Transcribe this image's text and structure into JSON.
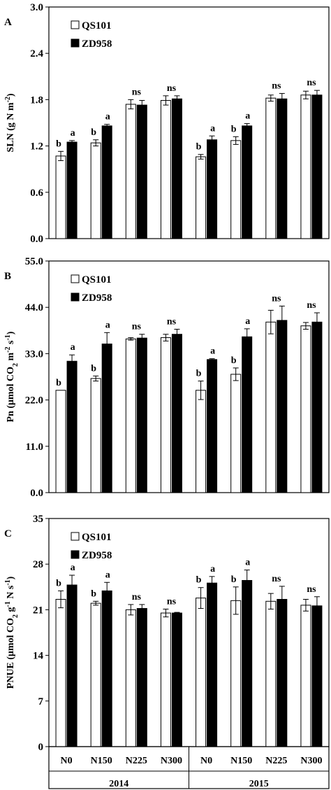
{
  "chart_data": [
    {
      "type": "bar",
      "panel": "A",
      "ylabel_parts": [
        "SLN (g N m",
        "-2",
        ")"
      ],
      "ylim": [
        0,
        3.0
      ],
      "yticks": [
        "0.0",
        "0.6",
        "1.2",
        "1.8",
        "2.4",
        "3.0"
      ],
      "categories": [
        "N0",
        "N150",
        "N225",
        "N300",
        "N0",
        "N150",
        "N225",
        "N300"
      ],
      "legend": {
        "placement": "top-left"
      },
      "series": [
        {
          "name": "QS101",
          "fill": "#ffffff",
          "values": [
            1.07,
            1.24,
            1.74,
            1.79,
            1.06,
            1.27,
            1.82,
            1.86
          ],
          "errors": [
            0.06,
            0.04,
            0.06,
            0.06,
            0.03,
            0.05,
            0.04,
            0.05
          ]
        },
        {
          "name": "ZD958",
          "fill": "#000000",
          "values": [
            1.25,
            1.46,
            1.73,
            1.81,
            1.28,
            1.46,
            1.81,
            1.86
          ],
          "errors": [
            0.02,
            0.02,
            0.06,
            0.04,
            0.05,
            0.03,
            0.07,
            0.06
          ]
        }
      ],
      "labels": [
        [
          "b",
          "b",
          "ns",
          "ns",
          "b",
          "b",
          "ns",
          "ns"
        ],
        [
          "a",
          "a",
          "",
          "",
          "a",
          "a",
          "",
          ""
        ]
      ]
    },
    {
      "type": "bar",
      "panel": "B",
      "ylabel_parts": [
        "Pn (μmol CO",
        "2",
        "  m",
        "-2",
        " s",
        "-1",
        ")"
      ],
      "ylim": [
        0,
        55.0
      ],
      "yticks": [
        "0.0",
        "11.0",
        "22.0",
        "33.0",
        "44.0",
        "55.0"
      ],
      "categories": [
        "N0",
        "N150",
        "N225",
        "N300",
        "N0",
        "N150",
        "N225",
        "N300"
      ],
      "legend": {
        "placement": "top-left"
      },
      "series": [
        {
          "name": "QS101",
          "fill": "#ffffff",
          "values": [
            24.3,
            27.1,
            36.5,
            36.8,
            24.3,
            28.1,
            40.5,
            39.6
          ],
          "errors": [
            0.0,
            0.6,
            0.3,
            0.8,
            2.2,
            1.5,
            2.8,
            0.8
          ]
        },
        {
          "name": "ZD958",
          "fill": "#000000",
          "values": [
            31.2,
            35.3,
            36.7,
            37.6,
            31.6,
            37.0,
            40.9,
            40.5
          ],
          "errors": [
            1.5,
            2.7,
            0.9,
            1.2,
            0.2,
            1.9,
            3.4,
            2.2
          ]
        }
      ],
      "labels": [
        [
          "b",
          "b",
          "ns",
          "ns",
          "b",
          "b",
          "ns",
          "ns"
        ],
        [
          "a",
          "a",
          "",
          "",
          "a",
          "a",
          "",
          ""
        ]
      ]
    },
    {
      "type": "bar",
      "panel": "C",
      "ylabel_parts": [
        "PNUE (μmol CO",
        "2",
        " g",
        "-1",
        " N s",
        "-1",
        ")"
      ],
      "ylim": [
        0,
        35
      ],
      "yticks": [
        "0",
        "7",
        "14",
        "21",
        "28",
        "35"
      ],
      "categories": [
        "N0",
        "N150",
        "N225",
        "N300",
        "N0",
        "N150",
        "N225",
        "N300"
      ],
      "groups": [
        "2014",
        "2015"
      ],
      "legend": {
        "placement": "top-left"
      },
      "series": [
        {
          "name": "QS101",
          "fill": "#ffffff",
          "values": [
            22.6,
            22.0,
            21.0,
            20.5,
            22.8,
            22.4,
            22.3,
            21.7
          ],
          "errors": [
            1.3,
            0.3,
            0.8,
            0.6,
            1.6,
            2.1,
            1.2,
            0.9
          ]
        },
        {
          "name": "ZD958",
          "fill": "#000000",
          "values": [
            24.8,
            23.9,
            21.2,
            20.5,
            25.1,
            25.5,
            22.6,
            21.6
          ],
          "errors": [
            1.5,
            1.3,
            0.6,
            0.1,
            1.0,
            1.6,
            2.0,
            1.4
          ]
        }
      ],
      "labels": [
        [
          "b",
          "b",
          "ns",
          "ns",
          "b",
          "b",
          "ns",
          "ns"
        ],
        [
          "a",
          "a",
          "",
          "",
          "a",
          "a",
          "",
          ""
        ]
      ]
    }
  ]
}
